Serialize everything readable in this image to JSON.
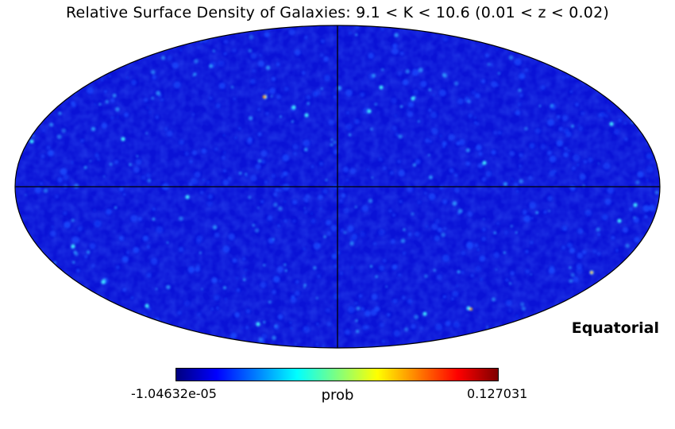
{
  "title": "Relative Surface Density of Galaxies: 9.1 < K < 10.6 (0.01 < z < 0.02)",
  "coordinate_system": "Equatorial",
  "colorbar": {
    "label": "prob",
    "min": "-1.04632e-05",
    "max": "0.127031",
    "colormap": "jet",
    "stops": [
      "#00007f",
      "#0000ff",
      "#007fff",
      "#00ffff",
      "#7fff7f",
      "#ffff00",
      "#ff7f00",
      "#ff0000",
      "#7f0000"
    ]
  },
  "map": {
    "projection": "mollweide",
    "graticule": "equator and central meridian",
    "background_color": "#0a12d6"
  }
}
